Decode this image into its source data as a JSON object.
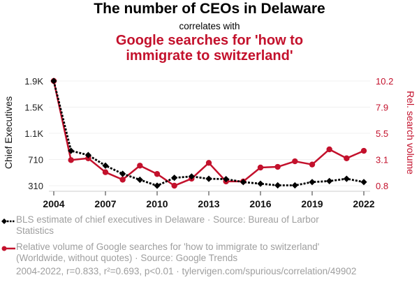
{
  "header": {
    "title": "The number of CEOs in Delaware",
    "connector": "correlates with",
    "subtitle_line1": "Google searches for 'how to",
    "subtitle_line2": "immigrate to switzerland'"
  },
  "colors": {
    "series1": "#000000",
    "series2": "#c3112c",
    "legend_text": "#9e9e9e",
    "grid": "#f0f0f0"
  },
  "legend": [
    {
      "icon": "dotted-line-diamond-icon",
      "text": "BLS estimate of chief executives in Delaware · Source: Bureau of Larbor Statistics"
    },
    {
      "icon": "solid-line-circle-icon",
      "text": "Relative volume of Google searches for 'how to immigrate to switzerland' (Worldwide, without quotes) · Source: Google Trends"
    }
  ],
  "footer": "2004-2022, r=0.833, r²=0.693, p<0.01 · tylervigen.com/spurious/correlation/49902",
  "chart_data": {
    "type": "line",
    "title": "The number of CEOs in Delaware correlates with Google searches for 'how to immigrate to switzerland'",
    "x": [
      2004,
      2005,
      2006,
      2007,
      2008,
      2009,
      2010,
      2011,
      2012,
      2013,
      2014,
      2015,
      2016,
      2017,
      2018,
      2019,
      2020,
      2021,
      2022
    ],
    "xlabel": "",
    "x_ticks": [
      2004,
      2007,
      2010,
      2013,
      2016,
      2019,
      2022
    ],
    "x_range": [
      2004,
      2022
    ],
    "series": [
      {
        "name": "BLS estimate of chief executives in Delaware",
        "axis": "left",
        "style": "dotted-diamond",
        "values": [
          1900,
          840,
          775,
          615,
          490,
          400,
          310,
          430,
          450,
          415,
          410,
          365,
          340,
          315,
          315,
          365,
          380,
          415,
          365
        ]
      },
      {
        "name": "Relative volume of Google searches for 'how to immigrate to switzerland'",
        "axis": "right",
        "style": "solid-circle",
        "values": [
          10.2,
          3.1,
          3.26,
          2.01,
          1.34,
          2.6,
          1.85,
          0.8,
          1.43,
          2.85,
          1.18,
          1.18,
          2.43,
          2.49,
          2.99,
          2.7,
          4.06,
          3.26,
          3.93
        ]
      }
    ],
    "y_left": {
      "label": "Chief Executives",
      "range": [
        310,
        1900
      ],
      "ticks": [
        1900,
        1502.5,
        1105,
        707.5,
        310
      ],
      "tick_labels": [
        "1.9K",
        "1.5K",
        "1.1K",
        "710",
        "310"
      ]
    },
    "y_right": {
      "label": "Rel. search volume",
      "range": [
        0.8,
        10.2
      ],
      "ticks": [
        10.2,
        7.85,
        5.5,
        3.15,
        0.8
      ],
      "tick_labels": [
        "10.2",
        "7.9",
        "5.5",
        "3.1",
        "0.8"
      ]
    },
    "grid": true,
    "legend_position": "bottom-left"
  }
}
